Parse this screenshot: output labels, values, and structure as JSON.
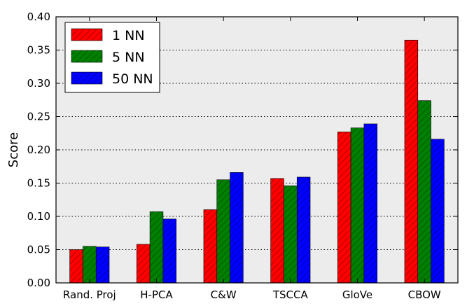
{
  "chart_data": {
    "type": "bar",
    "title": "",
    "xlabel": "",
    "ylabel": "Score",
    "ylim": [
      0,
      0.4
    ],
    "yticks": [
      "0.00",
      "0.05",
      "0.10",
      "0.15",
      "0.20",
      "0.25",
      "0.30",
      "0.35",
      "0.40"
    ],
    "grid": "horizontal dotted",
    "legend_position": "top-left",
    "categories": [
      "Rand. Proj",
      "H-PCA",
      "C&W",
      "TSCCA",
      "GloVe",
      "CBOW"
    ],
    "series": [
      {
        "name": "1 NN",
        "color": "#ff0000",
        "values": [
          0.05,
          0.058,
          0.11,
          0.157,
          0.227,
          0.365
        ]
      },
      {
        "name": "5 NN",
        "color": "#008000",
        "values": [
          0.055,
          0.107,
          0.155,
          0.146,
          0.233,
          0.274
        ]
      },
      {
        "name": "50 NN",
        "color": "#0000ff",
        "values": [
          0.054,
          0.096,
          0.166,
          0.159,
          0.239,
          0.216
        ]
      }
    ]
  }
}
